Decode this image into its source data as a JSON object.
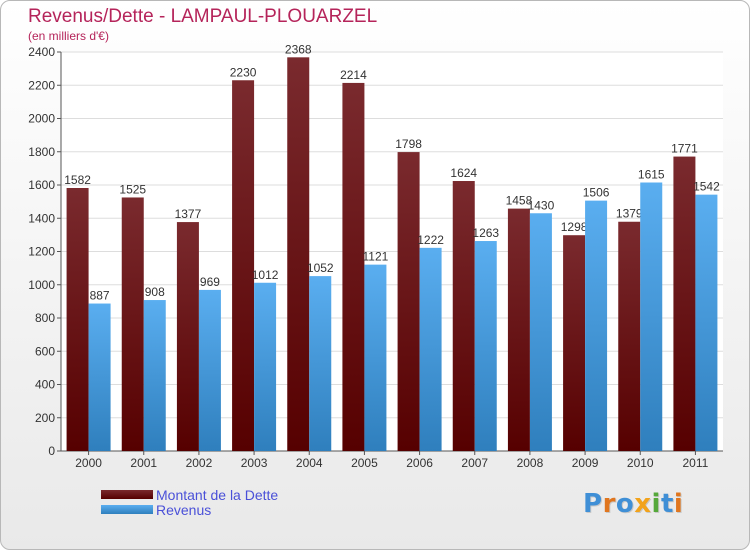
{
  "header": {
    "title": "Revenus/Dette - LAMPAUL-PLOUARZEL",
    "subtitle": "(en milliers d'€)"
  },
  "legend": {
    "debt_label": "Montant de la Dette",
    "revenue_label": "Revenus"
  },
  "logo": {
    "text": "Proxiti"
  },
  "colors": {
    "debt_top": "#7a2a2e",
    "debt_bottom": "#560000",
    "revenue_top": "#5aaef0",
    "revenue_bottom": "#2f7fbd",
    "title": "#b5245a",
    "legend_text": "#4a50d8"
  },
  "chart_data": {
    "type": "bar",
    "title": "Revenus/Dette - LAMPAUL-PLOUARZEL",
    "subtitle": "(en milliers d'€)",
    "categories": [
      "2000",
      "2001",
      "2002",
      "2003",
      "2004",
      "2005",
      "2006",
      "2007",
      "2008",
      "2009",
      "2010",
      "2011"
    ],
    "series": [
      {
        "name": "Montant de la Dette",
        "values": [
          1582,
          1525,
          1377,
          2230,
          2368,
          2214,
          1798,
          1624,
          1458,
          1298,
          1379,
          1771
        ]
      },
      {
        "name": "Revenus",
        "values": [
          887,
          908,
          969,
          1012,
          1052,
          1121,
          1222,
          1263,
          1430,
          1506,
          1615,
          1542
        ]
      }
    ],
    "ylim": [
      0,
      2400
    ],
    "yticks": [
      0,
      200,
      400,
      600,
      800,
      1000,
      1200,
      1400,
      1600,
      1800,
      2000,
      2200,
      2400
    ],
    "grid": true,
    "legend_position": "bottom-left"
  }
}
